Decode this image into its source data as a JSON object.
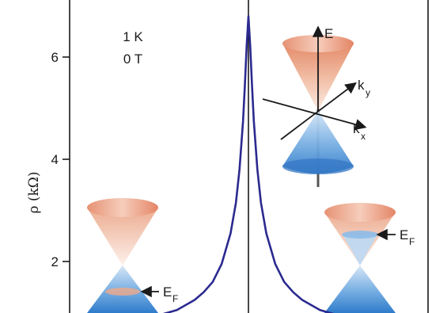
{
  "chart_data": {
    "type": "line",
    "xlabel": "",
    "ylabel": "ρ (kΩ)",
    "ylim": [
      1,
      7
    ],
    "yticks": [
      2,
      4,
      6
    ],
    "xlim": [
      -1,
      1
    ],
    "grid": false,
    "annotations": [
      "1 K",
      "0 T"
    ],
    "series": [
      {
        "color": "#2b2a8f",
        "x": [
          -0.5,
          -0.4,
          -0.3,
          -0.25,
          -0.2,
          -0.15,
          -0.1,
          -0.07,
          -0.05,
          -0.03,
          -0.02,
          -0.01,
          0,
          0.01,
          0.02,
          0.03,
          0.05,
          0.07,
          0.1,
          0.15,
          0.2,
          0.25,
          0.3,
          0.4,
          0.5
        ],
        "y": [
          0.95,
          1.05,
          1.25,
          1.4,
          1.6,
          1.95,
          2.55,
          3.15,
          3.8,
          4.75,
          5.45,
          6.2,
          6.8,
          6.2,
          5.45,
          4.75,
          3.8,
          3.15,
          2.55,
          1.95,
          1.6,
          1.4,
          1.25,
          1.05,
          0.95
        ]
      }
    ]
  },
  "insets": {
    "band_axis": {
      "energy_label": "E",
      "ky_label": "k",
      "ky_sub": "y",
      "kx_label": "k",
      "kx_sub": "x"
    },
    "left_cone": {
      "fermi_label": "E",
      "fermi_sub": "F"
    },
    "right_cone": {
      "fermi_label": "E",
      "fermi_sub": "F"
    }
  },
  "colors": {
    "curve": "#2b2a8f",
    "cone_top": "#e08a68",
    "cone_bottom": "#3f86cf",
    "axis": "#1a1a1a"
  }
}
